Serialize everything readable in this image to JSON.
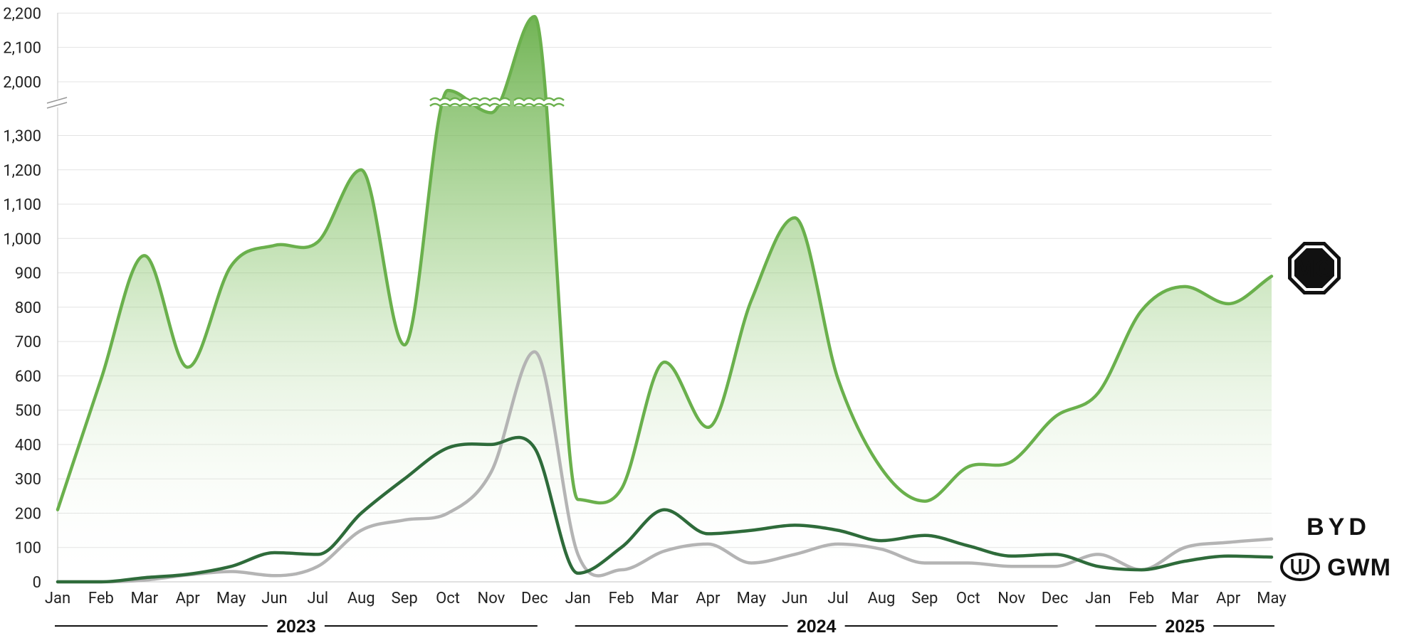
{
  "chart_data": {
    "type": "line",
    "categories": [
      "Jan",
      "Feb",
      "Mar",
      "Apr",
      "May",
      "Jun",
      "Jul",
      "Aug",
      "Sep",
      "Oct",
      "Nov",
      "Dec",
      "Jan",
      "Feb",
      "Mar",
      "Apr",
      "May",
      "Jun",
      "Jul",
      "Aug",
      "Sep",
      "Oct",
      "Nov",
      "Dec",
      "Jan",
      "Feb",
      "Mar",
      "Apr",
      "May"
    ],
    "years": [
      {
        "label": "2023",
        "from": 0,
        "to": 11
      },
      {
        "label": "2024",
        "from": 12,
        "to": 23
      },
      {
        "label": "2025",
        "from": 24,
        "to": 28
      }
    ],
    "y_ticks_lower": [
      "0",
      "100",
      "200",
      "300",
      "400",
      "500",
      "600",
      "700",
      "800",
      "900",
      "1,000",
      "1,100",
      "1,200",
      "1,300"
    ],
    "y_ticks_upper": [
      "2,000",
      "2,100",
      "2,200"
    ],
    "axis_break": {
      "lower_max": 1350,
      "upper_min": 1950,
      "upper_max": 2200
    },
    "ylim": [
      0,
      2200
    ],
    "grid": true,
    "series": [
      {
        "name": "MG",
        "logo": "MG",
        "color": "#6ab04c",
        "area": true,
        "values": [
          210,
          590,
          950,
          625,
          920,
          980,
          990,
          1200,
          690,
          1975,
          1910,
          2190,
          240,
          270,
          640,
          450,
          820,
          1060,
          590,
          330,
          235,
          335,
          350,
          480,
          550,
          790,
          860,
          810,
          890
        ]
      },
      {
        "name": "BYD",
        "logo": "BYD",
        "color": "#b4b4b4",
        "area": false,
        "values": [
          0,
          0,
          5,
          20,
          30,
          18,
          45,
          150,
          180,
          200,
          320,
          670,
          80,
          35,
          90,
          110,
          55,
          80,
          110,
          95,
          55,
          55,
          45,
          45,
          80,
          35,
          100,
          115,
          125
        ]
      },
      {
        "name": "GWM",
        "logo": "GWM",
        "color": "#2e6b3a",
        "area": false,
        "values": [
          0,
          0,
          12,
          22,
          45,
          85,
          80,
          200,
          300,
          390,
          400,
          390,
          25,
          100,
          210,
          140,
          150,
          165,
          150,
          120,
          135,
          105,
          75,
          80,
          45,
          35,
          60,
          75,
          72
        ]
      }
    ]
  }
}
